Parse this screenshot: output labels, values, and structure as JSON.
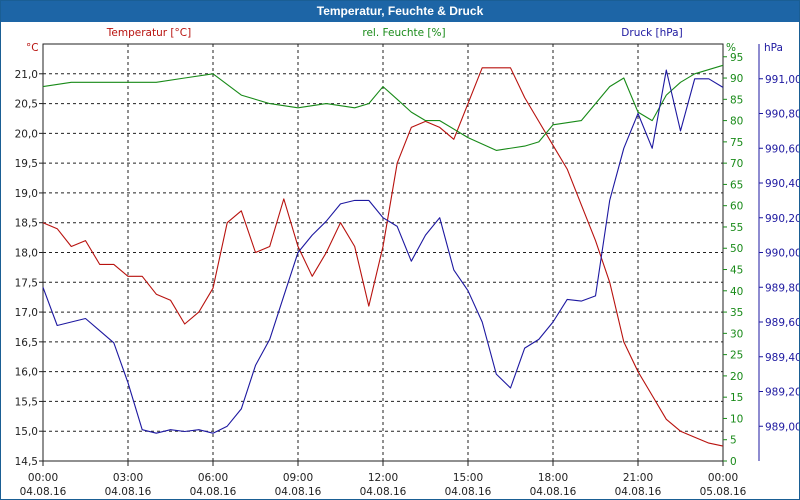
{
  "window_title": "Temperatur, Feuchte & Druck",
  "colors": {
    "temperature": "#b8120e",
    "humidity": "#188a18",
    "pressure": "#1d18a0",
    "grid": "#222222",
    "title_bg": "#1d65a6"
  },
  "chart_data": {
    "type": "line",
    "title": "Temperatur, Feuchte & Druck",
    "x_ticks": [
      {
        "time": "00:00",
        "date": "04.08.16"
      },
      {
        "time": "03:00",
        "date": "04.08.16"
      },
      {
        "time": "06:00",
        "date": "04.08.16"
      },
      {
        "time": "09:00",
        "date": "04.08.16"
      },
      {
        "time": "12:00",
        "date": "04.08.16"
      },
      {
        "time": "15:00",
        "date": "04.08.16"
      },
      {
        "time": "18:00",
        "date": "04.08.16"
      },
      {
        "time": "21:00",
        "date": "04.08.16"
      },
      {
        "time": "00:00",
        "date": "05.08.16"
      }
    ],
    "x_range_hours": [
      0,
      24
    ],
    "axes": {
      "temperature": {
        "label": "Temperatur [°C]",
        "unit": "°C",
        "ylim": [
          14.5,
          21.5
        ],
        "ticks": [
          "14,5",
          "15,0",
          "15,5",
          "16,0",
          "16,5",
          "17,0",
          "17,5",
          "18,0",
          "18,5",
          "19,0",
          "19,5",
          "20,0",
          "20,5",
          "21,0"
        ]
      },
      "humidity": {
        "label": "rel. Feuchte [%]",
        "unit": "%",
        "ylim": [
          0,
          98
        ],
        "ticks": [
          "0",
          "5",
          "10",
          "15",
          "20",
          "25",
          "30",
          "35",
          "40",
          "45",
          "50",
          "55",
          "60",
          "65",
          "70",
          "75",
          "80",
          "85",
          "90",
          "95"
        ]
      },
      "pressure": {
        "label": "Druck [hPa]",
        "unit": "hPa",
        "ylim": [
          988.8,
          991.2
        ],
        "ticks": [
          "989,00",
          "989,20",
          "989,40",
          "989,60",
          "989,80",
          "990,00",
          "990,20",
          "990,40",
          "990,60",
          "990,80",
          "991,00"
        ],
        "tick_values": [
          989.0,
          989.2,
          989.4,
          989.6,
          989.8,
          990.0,
          990.2,
          990.4,
          990.6,
          990.8,
          991.0
        ]
      }
    },
    "series": [
      {
        "name": "Temperatur",
        "axis": "temperature",
        "x": [
          0,
          0.5,
          1,
          1.5,
          2,
          2.5,
          3,
          3.5,
          4,
          4.5,
          5,
          5.5,
          6,
          6.5,
          7,
          7.5,
          8,
          8.5,
          9,
          9.5,
          10,
          10.5,
          11,
          11.5,
          12,
          12.5,
          13,
          13.5,
          14,
          14.5,
          15,
          15.5,
          16,
          16.5,
          17,
          17.5,
          18,
          18.5,
          19,
          19.5,
          20,
          20.5,
          21,
          21.5,
          22,
          22.5,
          23,
          23.5,
          24
        ],
        "values": [
          18.5,
          18.4,
          18.1,
          18.2,
          17.8,
          17.8,
          17.6,
          17.6,
          17.3,
          17.2,
          16.8,
          17.0,
          17.4,
          18.5,
          18.7,
          18.0,
          18.1,
          18.9,
          18.1,
          17.6,
          18.0,
          18.5,
          18.1,
          17.1,
          18.1,
          19.5,
          20.1,
          20.2,
          20.1,
          19.9,
          20.5,
          21.1,
          21.1,
          21.1,
          20.6,
          20.2,
          19.8,
          19.4,
          18.8,
          18.2,
          17.5,
          16.5,
          16.0,
          15.6,
          15.2,
          15.0,
          14.9,
          14.8,
          14.75
        ]
      },
      {
        "name": "rel. Feuchte",
        "axis": "humidity",
        "x": [
          0,
          1,
          2,
          3,
          4,
          5,
          6,
          7,
          8,
          9,
          10,
          11,
          11.5,
          12,
          12.5,
          13,
          13.5,
          14,
          15,
          16,
          17,
          17.5,
          18,
          19,
          20,
          20.5,
          21,
          21.5,
          22,
          22.5,
          23,
          24
        ],
        "values": [
          88,
          89,
          89,
          89,
          89,
          90,
          91,
          86,
          84,
          83,
          84,
          83,
          84,
          88,
          85,
          82,
          80,
          80,
          76,
          73,
          74,
          75,
          79,
          80,
          88,
          90,
          82,
          80,
          86,
          89,
          91,
          93
        ]
      },
      {
        "name": "Druck",
        "axis": "pressure",
        "x": [
          0,
          0.5,
          1,
          1.5,
          2,
          2.5,
          3,
          3.5,
          4,
          4.5,
          5,
          5.5,
          6,
          6.5,
          7,
          7.5,
          8,
          8.5,
          9,
          9.5,
          10,
          10.5,
          11,
          11.5,
          12,
          12.5,
          13,
          13.5,
          14,
          14.5,
          15,
          15.5,
          16,
          16.5,
          17,
          17.5,
          18,
          18.5,
          19,
          19.5,
          20,
          20.5,
          21,
          21.5,
          22,
          22.5,
          23,
          23.5,
          24
        ],
        "values": [
          989.8,
          989.58,
          989.6,
          989.62,
          989.55,
          989.48,
          989.25,
          988.98,
          988.96,
          988.98,
          988.97,
          988.98,
          988.96,
          989.0,
          989.1,
          989.35,
          989.5,
          989.75,
          990.0,
          990.1,
          990.18,
          990.28,
          990.3,
          990.3,
          990.2,
          990.15,
          989.95,
          990.1,
          990.2,
          989.9,
          989.78,
          989.6,
          989.3,
          989.22,
          989.45,
          989.5,
          989.6,
          989.73,
          989.72,
          989.75,
          990.3,
          990.6,
          990.8,
          990.6,
          991.05,
          990.7,
          991.0,
          991.0,
          990.95
        ]
      }
    ]
  }
}
